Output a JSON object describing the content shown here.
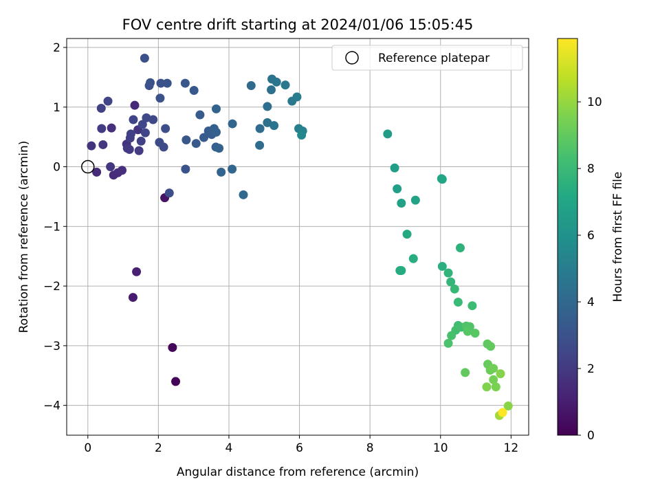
{
  "chart_data": {
    "type": "scatter",
    "title": "FOV centre drift starting at 2024/01/06 15:05:45",
    "xlabel": "Angular distance from reference (arcmin)",
    "ylabel": "Rotation from reference (arcmin)",
    "xlim": [
      -0.6,
      12.5
    ],
    "ylim": [
      -4.5,
      2.15
    ],
    "xticks": [
      0,
      2,
      4,
      6,
      8,
      10,
      12
    ],
    "xtick_labels": [
      "0",
      "2",
      "4",
      "6",
      "8",
      "10",
      "12"
    ],
    "yticks": [
      -4,
      -3,
      -2,
      -1,
      0,
      1,
      2
    ],
    "ytick_labels": [
      "−4",
      "−3",
      "−2",
      "−1",
      "0",
      "1",
      "2"
    ],
    "grid": true,
    "colormap": "viridis",
    "colorbar": {
      "label": "Hours from first FF file",
      "range": [
        0,
        11.9
      ],
      "ticks": [
        0,
        2,
        4,
        6,
        8,
        10
      ],
      "tick_labels": [
        "0",
        "2",
        "4",
        "6",
        "8",
        "10"
      ]
    },
    "legend": {
      "position": "top-right",
      "entries": [
        "Reference platepar"
      ]
    },
    "reference_point": {
      "x": 0,
      "y": 0
    },
    "points": [
      {
        "x": 2.49,
        "y": -3.6,
        "c": 0.1
      },
      {
        "x": 2.4,
        "y": -3.03,
        "c": 0.2
      },
      {
        "x": 2.18,
        "y": -0.52,
        "c": 0.6
      },
      {
        "x": 1.28,
        "y": -2.19,
        "c": 0.9
      },
      {
        "x": 1.38,
        "y": -1.76,
        "c": 1.1
      },
      {
        "x": 1.33,
        "y": 1.03,
        "c": 1.3
      },
      {
        "x": 0.25,
        "y": -0.09,
        "c": 1.4
      },
      {
        "x": 0.73,
        "y": -0.14,
        "c": 1.5
      },
      {
        "x": 0.85,
        "y": -0.1,
        "c": 1.5
      },
      {
        "x": 0.97,
        "y": -0.06,
        "c": 1.6
      },
      {
        "x": 0.67,
        "y": 0.65,
        "c": 1.6
      },
      {
        "x": 1.1,
        "y": 0.38,
        "c": 1.7
      },
      {
        "x": 1.42,
        "y": 0.62,
        "c": 1.8
      },
      {
        "x": 0.1,
        "y": 0.35,
        "c": 1.8
      },
      {
        "x": 0.43,
        "y": 0.37,
        "c": 1.9
      },
      {
        "x": 0.64,
        "y": 0.0,
        "c": 1.9
      },
      {
        "x": 1.12,
        "y": 0.31,
        "c": 2.0
      },
      {
        "x": 1.18,
        "y": 0.29,
        "c": 2.0
      },
      {
        "x": 0.39,
        "y": 0.64,
        "c": 2.1
      },
      {
        "x": 1.45,
        "y": 0.27,
        "c": 2.1
      },
      {
        "x": 1.2,
        "y": 0.48,
        "c": 2.2
      },
      {
        "x": 1.22,
        "y": 0.55,
        "c": 2.2
      },
      {
        "x": 1.51,
        "y": 0.43,
        "c": 2.3
      },
      {
        "x": 0.38,
        "y": 0.98,
        "c": 2.3
      },
      {
        "x": 0.57,
        "y": 1.1,
        "c": 2.4
      },
      {
        "x": 1.29,
        "y": 0.79,
        "c": 2.4
      },
      {
        "x": 1.55,
        "y": 0.71,
        "c": 2.5
      },
      {
        "x": 1.63,
        "y": 0.57,
        "c": 2.5
      },
      {
        "x": 1.66,
        "y": 0.82,
        "c": 2.6
      },
      {
        "x": 1.85,
        "y": 0.79,
        "c": 2.6
      },
      {
        "x": 2.03,
        "y": 0.41,
        "c": 2.7
      },
      {
        "x": 2.15,
        "y": 0.33,
        "c": 2.7
      },
      {
        "x": 2.31,
        "y": -0.44,
        "c": 2.8
      },
      {
        "x": 2.2,
        "y": 0.64,
        "c": 2.8
      },
      {
        "x": 1.61,
        "y": 1.82,
        "c": 2.9
      },
      {
        "x": 1.74,
        "y": 1.36,
        "c": 2.9
      },
      {
        "x": 1.77,
        "y": 1.41,
        "c": 3.0
      },
      {
        "x": 2.05,
        "y": 1.15,
        "c": 3.0
      },
      {
        "x": 2.07,
        "y": 1.4,
        "c": 3.0
      },
      {
        "x": 2.25,
        "y": 1.4,
        "c": 3.1
      },
      {
        "x": 2.77,
        "y": -0.04,
        "c": 3.1
      },
      {
        "x": 2.79,
        "y": 0.45,
        "c": 3.2
      },
      {
        "x": 2.76,
        "y": 1.4,
        "c": 3.2
      },
      {
        "x": 3.01,
        "y": 1.28,
        "c": 3.3
      },
      {
        "x": 3.07,
        "y": 0.39,
        "c": 3.3
      },
      {
        "x": 3.18,
        "y": 0.87,
        "c": 3.4
      },
      {
        "x": 3.29,
        "y": 0.49,
        "c": 3.4
      },
      {
        "x": 3.42,
        "y": 0.6,
        "c": 3.5
      },
      {
        "x": 3.51,
        "y": 0.54,
        "c": 3.5
      },
      {
        "x": 3.58,
        "y": 0.64,
        "c": 3.6
      },
      {
        "x": 3.63,
        "y": 0.33,
        "c": 3.6
      },
      {
        "x": 3.64,
        "y": 0.58,
        "c": 3.7
      },
      {
        "x": 3.72,
        "y": 0.31,
        "c": 3.7
      },
      {
        "x": 3.64,
        "y": 0.97,
        "c": 3.8
      },
      {
        "x": 3.78,
        "y": -0.09,
        "c": 3.8
      },
      {
        "x": 4.09,
        "y": -0.04,
        "c": 3.9
      },
      {
        "x": 4.1,
        "y": 0.72,
        "c": 3.9
      },
      {
        "x": 4.41,
        "y": -0.47,
        "c": 4.0
      },
      {
        "x": 4.63,
        "y": 1.36,
        "c": 4.1
      },
      {
        "x": 4.87,
        "y": 0.36,
        "c": 4.2
      },
      {
        "x": 4.88,
        "y": 0.64,
        "c": 4.2
      },
      {
        "x": 5.09,
        "y": 1.01,
        "c": 4.3
      },
      {
        "x": 5.09,
        "y": 0.74,
        "c": 4.4
      },
      {
        "x": 5.2,
        "y": 1.29,
        "c": 4.4
      },
      {
        "x": 5.22,
        "y": 1.47,
        "c": 4.5
      },
      {
        "x": 5.28,
        "y": 0.69,
        "c": 4.5
      },
      {
        "x": 5.35,
        "y": 1.42,
        "c": 4.6
      },
      {
        "x": 5.6,
        "y": 1.37,
        "c": 4.7
      },
      {
        "x": 5.79,
        "y": 1.1,
        "c": 4.8
      },
      {
        "x": 5.93,
        "y": 1.17,
        "c": 4.9
      },
      {
        "x": 5.98,
        "y": 0.64,
        "c": 5.1
      },
      {
        "x": 6.09,
        "y": 0.6,
        "c": 5.3
      },
      {
        "x": 6.06,
        "y": 0.53,
        "c": 5.5
      },
      {
        "x": 8.5,
        "y": 0.55,
        "c": 6.5
      },
      {
        "x": 8.7,
        "y": -0.02,
        "c": 6.6
      },
      {
        "x": 8.77,
        "y": -0.37,
        "c": 6.7
      },
      {
        "x": 8.89,
        "y": -0.61,
        "c": 6.8
      },
      {
        "x": 9.29,
        "y": -0.56,
        "c": 6.9
      },
      {
        "x": 10.05,
        "y": -0.21,
        "c": 7.0
      },
      {
        "x": 10.03,
        "y": -0.2,
        "c": 7.1
      },
      {
        "x": 9.05,
        "y": -1.13,
        "c": 7.2
      },
      {
        "x": 8.85,
        "y": -1.74,
        "c": 7.3
      },
      {
        "x": 8.89,
        "y": -1.74,
        "c": 7.3
      },
      {
        "x": 9.23,
        "y": -1.54,
        "c": 7.4
      },
      {
        "x": 10.05,
        "y": -1.67,
        "c": 7.5
      },
      {
        "x": 10.56,
        "y": -1.36,
        "c": 7.6
      },
      {
        "x": 10.22,
        "y": -1.78,
        "c": 7.7
      },
      {
        "x": 10.29,
        "y": -1.93,
        "c": 7.8
      },
      {
        "x": 10.4,
        "y": -2.05,
        "c": 7.9
      },
      {
        "x": 10.5,
        "y": -2.27,
        "c": 8.0
      },
      {
        "x": 10.9,
        "y": -2.33,
        "c": 8.1
      },
      {
        "x": 10.5,
        "y": -2.66,
        "c": 8.2
      },
      {
        "x": 10.59,
        "y": -2.69,
        "c": 8.3
      },
      {
        "x": 10.43,
        "y": -2.74,
        "c": 8.3
      },
      {
        "x": 10.31,
        "y": -2.83,
        "c": 8.4
      },
      {
        "x": 10.22,
        "y": -2.96,
        "c": 8.5
      },
      {
        "x": 10.73,
        "y": -2.67,
        "c": 8.6
      },
      {
        "x": 10.83,
        "y": -2.68,
        "c": 8.6
      },
      {
        "x": 10.77,
        "y": -2.76,
        "c": 8.7
      },
      {
        "x": 10.98,
        "y": -2.79,
        "c": 8.8
      },
      {
        "x": 11.33,
        "y": -2.97,
        "c": 8.9
      },
      {
        "x": 11.42,
        "y": -3.01,
        "c": 9.0
      },
      {
        "x": 10.7,
        "y": -3.45,
        "c": 9.0
      },
      {
        "x": 11.34,
        "y": -3.31,
        "c": 9.1
      },
      {
        "x": 11.41,
        "y": -3.41,
        "c": 9.2
      },
      {
        "x": 11.5,
        "y": -3.38,
        "c": 9.3
      },
      {
        "x": 11.5,
        "y": -3.57,
        "c": 9.4
      },
      {
        "x": 11.57,
        "y": -3.69,
        "c": 9.5
      },
      {
        "x": 11.31,
        "y": -3.69,
        "c": 9.6
      },
      {
        "x": 11.7,
        "y": -3.47,
        "c": 9.7
      },
      {
        "x": 11.92,
        "y": -4.01,
        "c": 9.8
      },
      {
        "x": 11.67,
        "y": -4.17,
        "c": 10.2
      },
      {
        "x": 11.76,
        "y": -4.12,
        "c": 11.9
      }
    ]
  }
}
